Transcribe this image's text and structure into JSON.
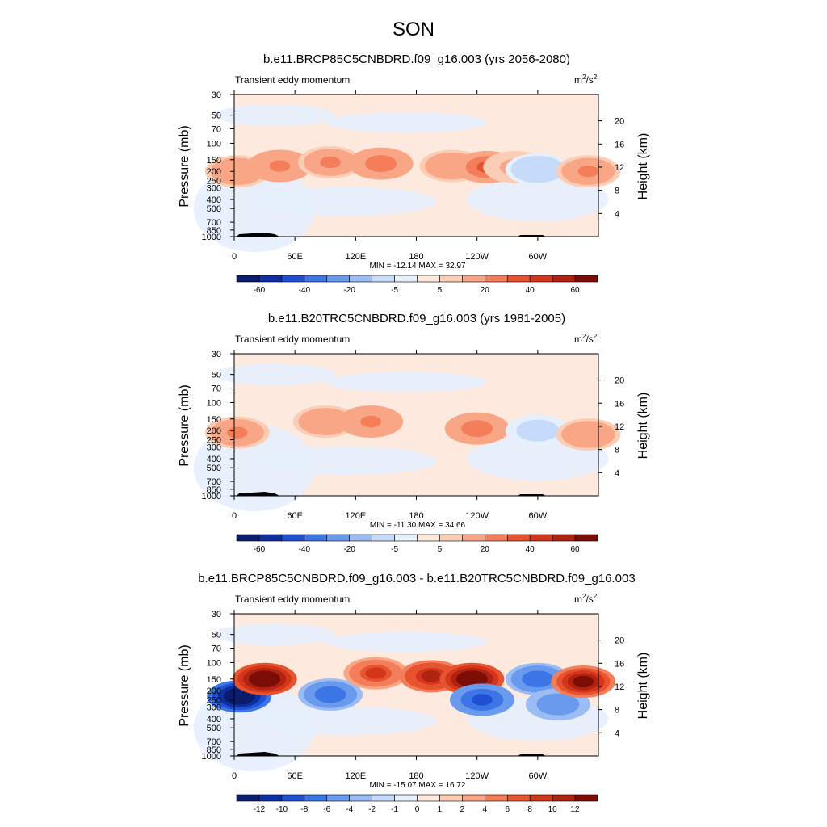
{
  "figure": {
    "title": "SON"
  },
  "chart_data": [
    {
      "type": "heatmap",
      "title": "b.e11.BRCP85C5CNBDRD.f09_g16.003 (yrs 2056-2080)",
      "left_label": "Transient eddy momentum",
      "units_base": "m",
      "units_exp": "2",
      "units_mid": "/s",
      "units_exp2": "2",
      "ylabel": "Pressure (mb)",
      "ylabel_right": "Height (km)",
      "xticks": [
        "0",
        "60E",
        "120E",
        "180",
        "120W",
        "60W"
      ],
      "yticks": [
        "30",
        "50",
        "70",
        "100",
        "150",
        "200",
        "250",
        "300",
        "400",
        "500",
        "700",
        "850",
        "1000"
      ],
      "yticks_right": [
        "20",
        "16",
        "12",
        "8",
        "4"
      ],
      "min_max_text": "MIN = -12.14  MAX =  32.97",
      "colorbar_labels": [
        "-60",
        "-40",
        "-20",
        "-5",
        "5",
        "20",
        "40",
        "60"
      ],
      "colorbar_levels": [
        -70,
        -60,
        -50,
        -40,
        -30,
        -20,
        -10,
        -5,
        0,
        5,
        10,
        20,
        30,
        40,
        50,
        60,
        70
      ],
      "min": -12.14,
      "max": 32.97,
      "features": [
        {
          "lon": 3,
          "p": 200,
          "value": 18
        },
        {
          "lon": 45,
          "p": 175,
          "value": 22
        },
        {
          "lon": 95,
          "p": 160,
          "value": 20
        },
        {
          "lon": 145,
          "p": 165,
          "value": 26
        },
        {
          "lon": 215,
          "p": 175,
          "value": 18
        },
        {
          "lon": 250,
          "p": 180,
          "value": 30
        },
        {
          "lon": 278,
          "p": 180,
          "value": 12
        },
        {
          "lon": 300,
          "p": 190,
          "value": -10
        },
        {
          "lon": 350,
          "p": 200,
          "value": 20
        }
      ]
    },
    {
      "type": "heatmap",
      "title": "b.e11.B20TRC5CNBDRD.f09_g16.003 (yrs 1981-2005)",
      "left_label": "Transient eddy momentum",
      "units_base": "m",
      "units_exp": "2",
      "units_mid": "/s",
      "units_exp2": "2",
      "ylabel": "Pressure (mb)",
      "ylabel_right": "Height (km)",
      "xticks": [
        "0",
        "60E",
        "120E",
        "180",
        "120W",
        "60W"
      ],
      "yticks": [
        "30",
        "50",
        "70",
        "100",
        "150",
        "200",
        "250",
        "300",
        "400",
        "500",
        "700",
        "850",
        "1000"
      ],
      "yticks_right": [
        "20",
        "16",
        "12",
        "8",
        "4"
      ],
      "min_max_text": "MIN = -11.30  MAX =  34.66",
      "colorbar_labels": [
        "-60",
        "-40",
        "-20",
        "-5",
        "5",
        "20",
        "40",
        "60"
      ],
      "colorbar_levels": [
        -70,
        -60,
        -50,
        -40,
        -30,
        -20,
        -10,
        -5,
        0,
        5,
        10,
        20,
        30,
        40,
        50,
        60,
        70
      ],
      "min": -11.3,
      "max": 34.66,
      "features": [
        {
          "lon": 3,
          "p": 210,
          "value": 20
        },
        {
          "lon": 90,
          "p": 160,
          "value": 18
        },
        {
          "lon": 135,
          "p": 160,
          "value": 22
        },
        {
          "lon": 240,
          "p": 190,
          "value": 24
        },
        {
          "lon": 300,
          "p": 200,
          "value": -8
        },
        {
          "lon": 350,
          "p": 220,
          "value": 18
        }
      ]
    },
    {
      "type": "heatmap",
      "title": "b.e11.BRCP85C5CNBDRD.f09_g16.003 - b.e11.B20TRC5CNBDRD.f09_g16.003",
      "left_label": "Transient eddy momentum",
      "units_base": "m",
      "units_exp": "2",
      "units_mid": "/s",
      "units_exp2": "2",
      "ylabel": "Pressure (mb)",
      "ylabel_right": "Height (km)",
      "xticks": [
        "0",
        "60E",
        "120E",
        "180",
        "120W",
        "60W"
      ],
      "yticks": [
        "30",
        "50",
        "70",
        "100",
        "150",
        "200",
        "250",
        "300",
        "400",
        "500",
        "700",
        "850",
        "1000"
      ],
      "yticks_right": [
        "20",
        "16",
        "12",
        "8",
        "4"
      ],
      "min_max_text": "MIN = -15.07  MAX =  16.72",
      "colorbar_labels": [
        "-12",
        "-10",
        "-8",
        "-6",
        "-4",
        "-2",
        "-1",
        "0",
        "1",
        "2",
        "4",
        "6",
        "8",
        "10",
        "12"
      ],
      "colorbar_levels": [
        -14,
        -12,
        -10,
        -8,
        -6,
        -4,
        -2,
        -1,
        0,
        1,
        2,
        4,
        6,
        8,
        10,
        12,
        14
      ],
      "min": -15.07,
      "max": 16.72,
      "features": [
        {
          "lon": 5,
          "p": 230,
          "value": -14
        },
        {
          "lon": 30,
          "p": 150,
          "value": 15
        },
        {
          "lon": 95,
          "p": 220,
          "value": -7
        },
        {
          "lon": 140,
          "p": 130,
          "value": 8
        },
        {
          "lon": 195,
          "p": 140,
          "value": 10
        },
        {
          "lon": 235,
          "p": 150,
          "value": 16
        },
        {
          "lon": 245,
          "p": 250,
          "value": -9
        },
        {
          "lon": 300,
          "p": 150,
          "value": -7
        },
        {
          "lon": 320,
          "p": 280,
          "value": -6
        },
        {
          "lon": 345,
          "p": 160,
          "value": 12
        }
      ]
    }
  ],
  "colormap": [
    "#0a1c6e",
    "#0e2fa0",
    "#1f4fd2",
    "#3c76e6",
    "#6a9aee",
    "#9bbcf4",
    "#c6dbfa",
    "#e6f0fd",
    "#fde9dd",
    "#fbcdb5",
    "#f8a685",
    "#f47d5a",
    "#e8532f",
    "#d3361b",
    "#b02311",
    "#7b0d05"
  ]
}
